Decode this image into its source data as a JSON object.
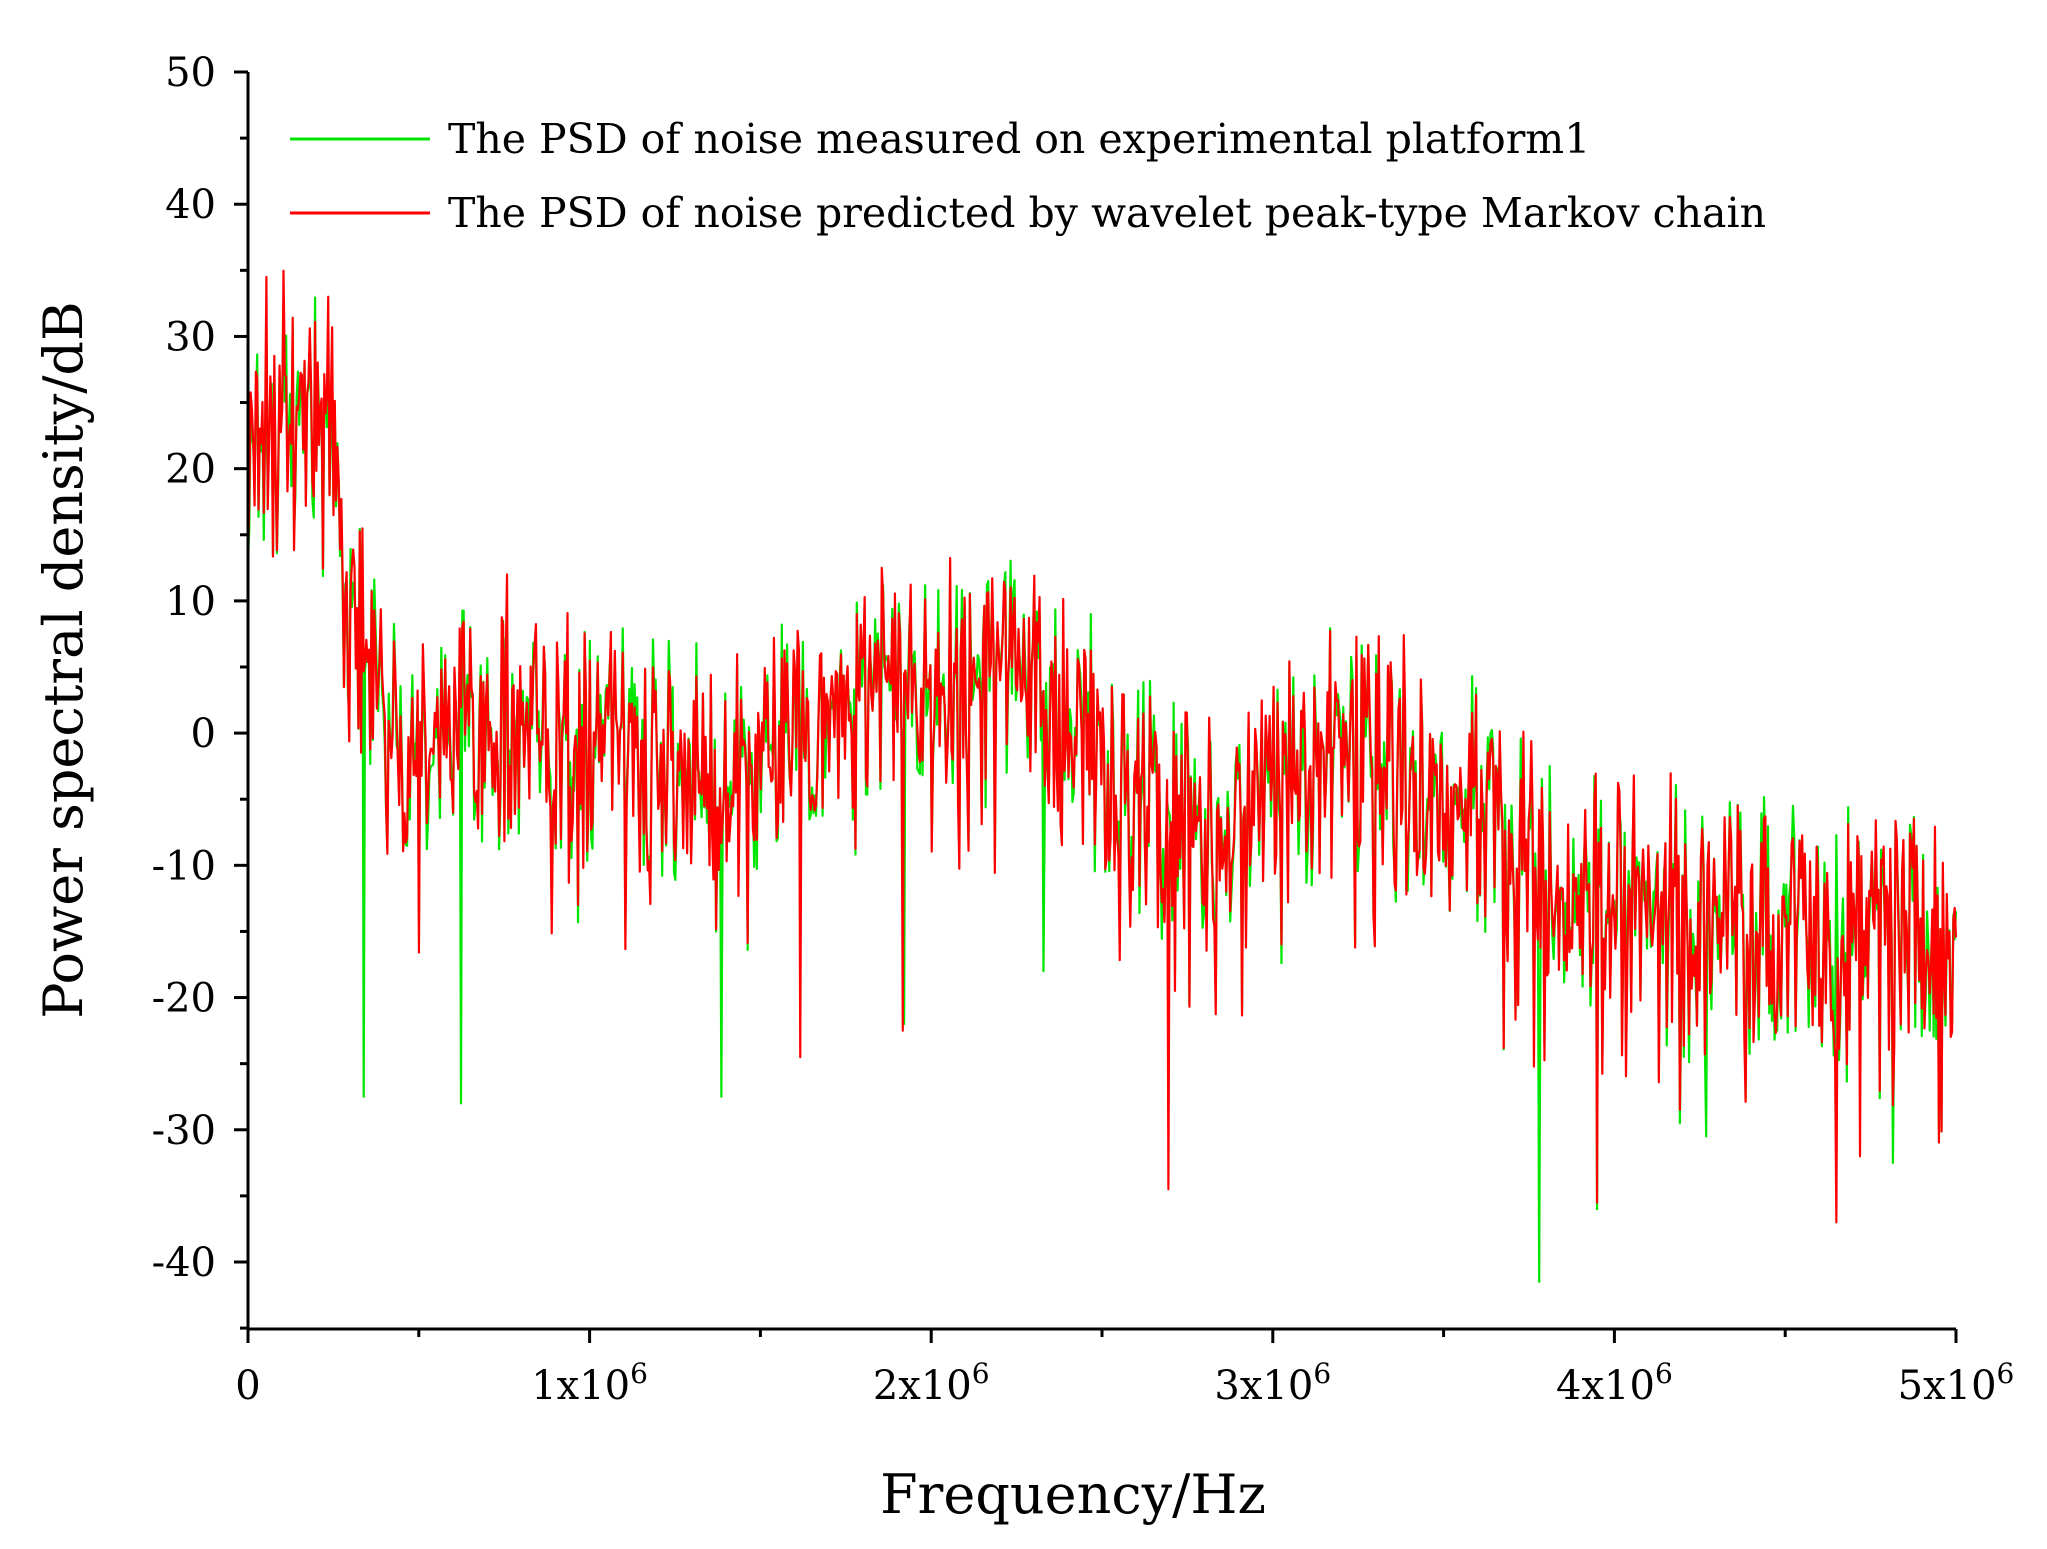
{
  "chart_data": {
    "type": "line",
    "title": "",
    "xlabel": "Frequency/Hz",
    "ylabel": "Power spectral density/dB",
    "xlim": [
      0,
      5000000
    ],
    "ylim": [
      -45,
      50
    ],
    "x_ticks": [
      {
        "value": 0,
        "base": "0",
        "exp": ""
      },
      {
        "value": 1000000,
        "base": "1x10",
        "exp": "6"
      },
      {
        "value": 2000000,
        "base": "2x10",
        "exp": "6"
      },
      {
        "value": 3000000,
        "base": "3x10",
        "exp": "6"
      },
      {
        "value": 4000000,
        "base": "4x10",
        "exp": "6"
      },
      {
        "value": 5000000,
        "base": "5x10",
        "exp": "6"
      }
    ],
    "y_ticks": [
      50,
      40,
      30,
      20,
      10,
      0,
      -10,
      -20,
      -30,
      -40
    ],
    "y_tick_labels": [
      "50",
      "40",
      "30",
      "20",
      "10",
      "0",
      "-10",
      "-20",
      "-30",
      "-40"
    ],
    "grid": false,
    "legend_position": "top",
    "sample_count": 1300,
    "series": [
      {
        "name": "The PSD of noise measured on experimental platform1",
        "color": "#00e600",
        "envelope_mean_db": [
          [
            0,
            22
          ],
          [
            100000,
            26
          ],
          [
            200000,
            25
          ],
          [
            260000,
            22
          ],
          [
            300000,
            8
          ],
          [
            400000,
            2
          ],
          [
            550000,
            -2
          ],
          [
            650000,
            1
          ],
          [
            800000,
            0
          ],
          [
            1000000,
            0
          ],
          [
            1200000,
            -1
          ],
          [
            1400000,
            -3
          ],
          [
            1600000,
            0
          ],
          [
            1800000,
            3
          ],
          [
            2000000,
            4
          ],
          [
            2200000,
            5
          ],
          [
            2400000,
            3
          ],
          [
            2600000,
            -5
          ],
          [
            2800000,
            -7
          ],
          [
            3000000,
            -3
          ],
          [
            3200000,
            0
          ],
          [
            3500000,
            -3
          ],
          [
            3800000,
            -10
          ],
          [
            4200000,
            -13
          ],
          [
            4600000,
            -15
          ],
          [
            5000000,
            -14
          ]
        ],
        "notable_dips": [
          {
            "x": 340000,
            "y": -27.5
          },
          {
            "x": 625000,
            "y": -28
          },
          {
            "x": 1385000,
            "y": -27.5
          },
          {
            "x": 1920000,
            "y": -22
          },
          {
            "x": 2330000,
            "y": -18
          },
          {
            "x": 3780000,
            "y": -41.5
          },
          {
            "x": 3950000,
            "y": -36
          },
          {
            "x": 4270000,
            "y": -30.5
          },
          {
            "x": 4815000,
            "y": -32.5
          }
        ]
      },
      {
        "name": "The PSD of noise predicted by wavelet peak-type Markov chain",
        "color": "#ff0000",
        "envelope_mean_db": [
          [
            0,
            22
          ],
          [
            100000,
            26
          ],
          [
            200000,
            25
          ],
          [
            260000,
            22
          ],
          [
            300000,
            8
          ],
          [
            400000,
            2
          ],
          [
            550000,
            -2
          ],
          [
            650000,
            1
          ],
          [
            800000,
            0
          ],
          [
            1000000,
            0
          ],
          [
            1200000,
            -1
          ],
          [
            1400000,
            -3
          ],
          [
            1600000,
            0
          ],
          [
            1800000,
            3
          ],
          [
            2000000,
            4
          ],
          [
            2200000,
            5
          ],
          [
            2400000,
            3
          ],
          [
            2600000,
            -5
          ],
          [
            2800000,
            -7
          ],
          [
            3000000,
            -3
          ],
          [
            3200000,
            0
          ],
          [
            3500000,
            -3
          ],
          [
            3800000,
            -10
          ],
          [
            4200000,
            -13
          ],
          [
            4600000,
            -15
          ],
          [
            5000000,
            -14
          ]
        ],
        "notable_peaks": [
          {
            "x": 55000,
            "y": 34.5
          },
          {
            "x": 235000,
            "y": 33
          },
          {
            "x": 760000,
            "y": 12
          },
          {
            "x": 1855000,
            "y": 12.5
          }
        ],
        "notable_dips": [
          {
            "x": 1615000,
            "y": -24.5
          },
          {
            "x": 1915000,
            "y": -22.5
          },
          {
            "x": 2695000,
            "y": -34.5
          },
          {
            "x": 3950000,
            "y": -35.5
          },
          {
            "x": 4650000,
            "y": -37
          },
          {
            "x": 4720000,
            "y": -32
          }
        ]
      }
    ]
  }
}
